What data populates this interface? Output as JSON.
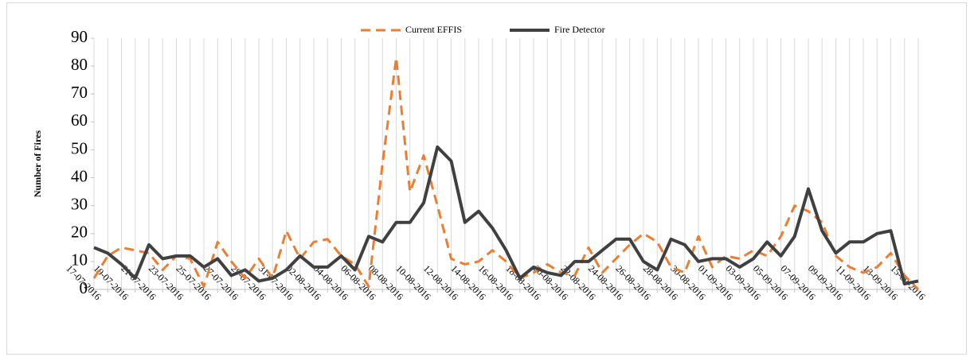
{
  "chart_data": {
    "type": "line",
    "legend": "top",
    "grid": "x",
    "y_label": "Number of Fires",
    "categories": [
      "17-07-2016",
      null,
      "19-07-2016",
      null,
      "21-07-2016",
      null,
      "23-07-2016",
      null,
      "25-07-2016",
      null,
      "27-07-2016",
      null,
      "29-07-2016",
      null,
      "31-07-2016",
      null,
      "02-08-2016",
      null,
      "04-08-2016",
      null,
      "06-08-2016",
      null,
      "08-08-2016",
      null,
      "10-08-2016",
      null,
      "12-08-2016",
      null,
      "14-08-2016",
      null,
      "16-08-2016",
      null,
      "18-08-2016",
      null,
      "20-08-2016",
      null,
      "22-08-2016",
      null,
      "24-08-2016",
      null,
      "26-08-2016",
      null,
      "28-08-2016",
      null,
      "30-08-2016",
      null,
      "01-09-2016",
      null,
      "03-09-2016",
      null,
      "05-09-2016",
      null,
      "07-09-2016",
      null,
      "09-09-2016",
      null,
      "11-09-2016",
      null,
      "13-09-2016",
      null,
      "15-09-2016"
    ],
    "series": [
      {
        "name": "Current EFFIS",
        "color": "#ed7d31",
        "dash": true,
        "values": [
          4,
          12,
          15,
          14,
          13,
          7,
          12,
          11,
          1,
          17,
          10,
          4,
          11,
          4,
          21,
          11,
          17,
          18,
          12,
          9,
          1,
          45,
          83,
          35,
          48,
          30,
          11,
          9,
          10,
          14,
          10,
          4,
          6,
          9,
          6,
          5,
          15,
          6,
          11,
          16,
          20,
          17,
          8,
          6,
          19,
          8,
          12,
          11,
          14,
          12,
          19,
          30,
          28,
          24,
          12,
          8,
          6,
          8,
          13,
          5,
          0
        ]
      },
      {
        "name": "Fire Detector",
        "color": "#404040",
        "dash": false,
        "values": [
          15,
          13,
          9,
          4,
          16,
          11,
          12,
          12,
          8,
          11,
          5,
          7,
          3,
          4,
          7,
          12,
          8,
          8,
          12,
          7,
          19,
          17,
          24,
          24,
          31,
          51,
          46,
          24,
          28,
          22,
          14,
          4,
          8,
          6,
          5,
          10,
          10,
          14,
          18,
          18,
          10,
          7,
          18,
          16,
          10,
          11,
          11,
          8,
          11,
          17,
          12,
          19,
          36,
          21,
          13,
          17,
          17,
          20,
          21,
          2,
          3
        ]
      }
    ],
    "ylim": [
      0,
      90
    ],
    "yticks": [
      0,
      10,
      20,
      30,
      40,
      50,
      60,
      70,
      80,
      90
    ]
  }
}
